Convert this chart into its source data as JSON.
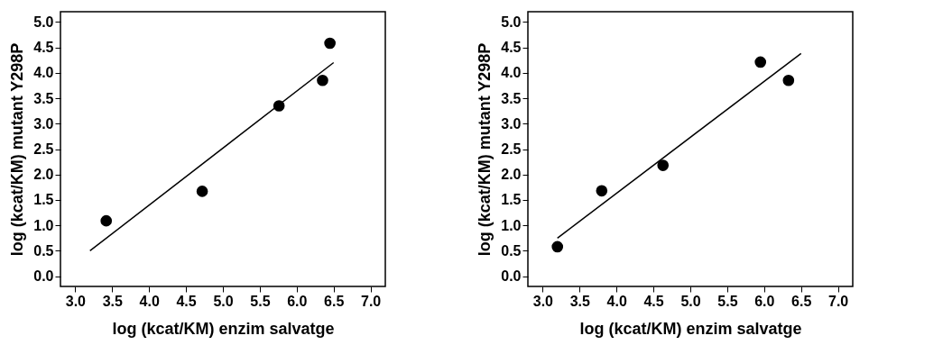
{
  "chart_data": [
    {
      "type": "scatter",
      "xlabel": "log (kcat/KM) enzim salvatge",
      "ylabel": "log (kcat/KM) mutant Y298P",
      "xlim": [
        2.8,
        7.2
      ],
      "ylim": [
        -0.2,
        5.2
      ],
      "xticks": [
        {
          "value": 3,
          "label": "3.0"
        },
        3.5,
        {
          "value": 4,
          "label": "4.0"
        },
        4.5,
        {
          "value": 5,
          "label": "5.0"
        },
        5.5,
        {
          "value": 6,
          "label": "6.0"
        },
        6.5,
        {
          "value": 7,
          "label": "7.0"
        }
      ],
      "yticks": [
        {
          "value": 0,
          "label": "0.0"
        },
        0.5,
        {
          "value": 1,
          "label": "1.0"
        },
        1.5,
        {
          "value": 2,
          "label": "2.0"
        },
        2.5,
        {
          "value": 3,
          "label": "3.0"
        },
        3.5,
        {
          "value": 4,
          "label": "4.0"
        },
        4.5,
        {
          "value": 5,
          "label": "5.0"
        }
      ],
      "grid": false,
      "series": [
        {
          "color": "#000000",
          "marker": "circle",
          "x": [
            3.42,
            4.72,
            5.76,
            6.35,
            6.45
          ],
          "values": [
            1.09,
            1.67,
            3.35,
            3.85,
            4.58
          ]
        },
        {
          "type": "line",
          "color": "#000000",
          "x": [
            3.2,
            6.5
          ],
          "values": [
            0.5,
            4.2
          ]
        }
      ]
    },
    {
      "type": "scatter",
      "xlabel": "log (kcat/KM) enzim salvatge",
      "ylabel": "log (kcat/KM) mutant Y298P",
      "xlim": [
        2.8,
        7.2
      ],
      "ylim": [
        -0.2,
        5.2
      ],
      "xticks": [
        {
          "value": 3,
          "label": "3.0"
        },
        3.5,
        {
          "value": 4,
          "label": "4.0"
        },
        4.5,
        {
          "value": 5,
          "label": "5.0"
        },
        5.5,
        {
          "value": 6,
          "label": "6.0"
        },
        6.5,
        {
          "value": 7,
          "label": "7.0"
        }
      ],
      "yticks": [
        {
          "value": 0,
          "label": "0.0"
        },
        0.5,
        {
          "value": 1,
          "label": "1.0"
        },
        1.5,
        {
          "value": 2,
          "label": "2.0"
        },
        2.5,
        {
          "value": 3,
          "label": "3.0"
        },
        3.5,
        {
          "value": 4,
          "label": "4.0"
        },
        4.5,
        {
          "value": 5,
          "label": "5.0"
        }
      ],
      "grid": false,
      "series": [
        {
          "color": "#000000",
          "marker": "circle",
          "x": [
            3.2,
            3.8,
            4.63,
            5.95,
            6.33
          ],
          "values": [
            0.58,
            1.68,
            2.18,
            4.21,
            3.85
          ]
        },
        {
          "type": "line",
          "color": "#000000",
          "x": [
            3.2,
            6.5
          ],
          "values": [
            0.75,
            4.38
          ]
        }
      ]
    }
  ]
}
